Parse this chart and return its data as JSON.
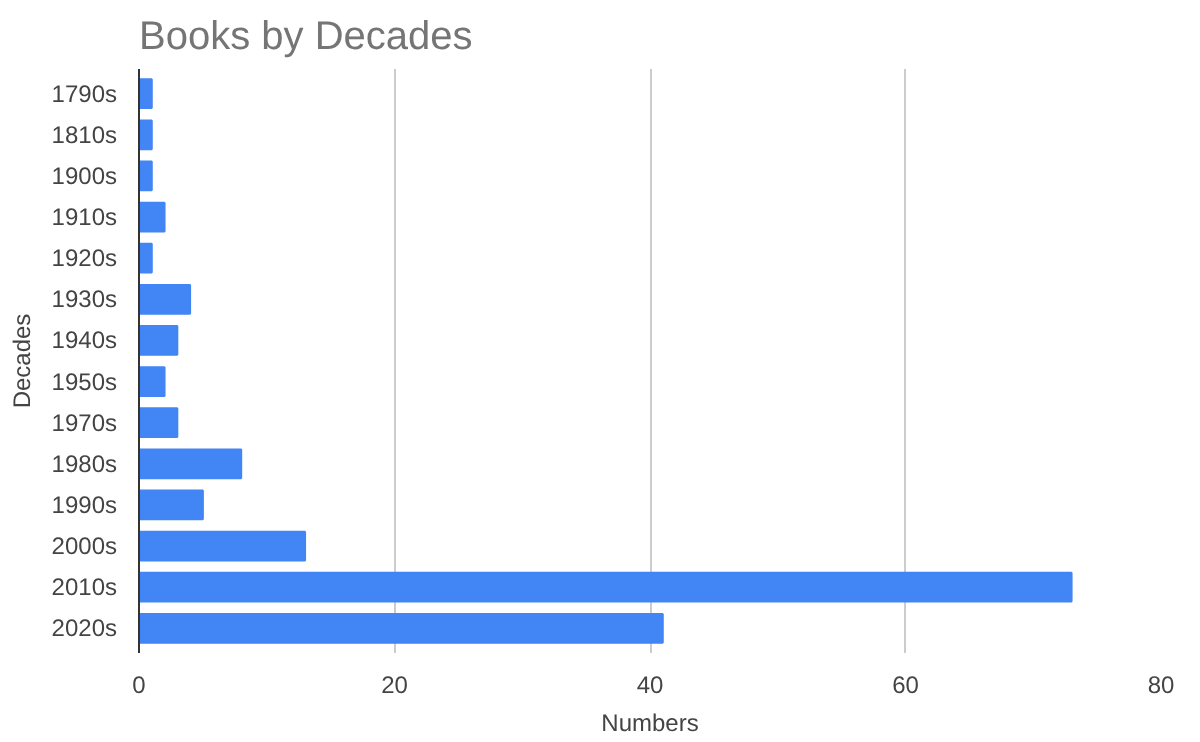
{
  "chart_data": {
    "type": "bar",
    "orientation": "horizontal",
    "title": "Books by Decades",
    "xlabel": "Numbers",
    "ylabel": "Decades",
    "categories": [
      "1790s",
      "1810s",
      "1900s",
      "1910s",
      "1920s",
      "1930s",
      "1940s",
      "1950s",
      "1970s",
      "1980s",
      "1990s",
      "2000s",
      "2010s",
      "2020s"
    ],
    "values": [
      1,
      1,
      1,
      2,
      1,
      4,
      3,
      2,
      3,
      8,
      5,
      13,
      73,
      41
    ],
    "color": "#4285f4",
    "xlim": [
      0,
      80
    ],
    "xticks": [
      0,
      20,
      40,
      60,
      80
    ],
    "grid": "x"
  }
}
